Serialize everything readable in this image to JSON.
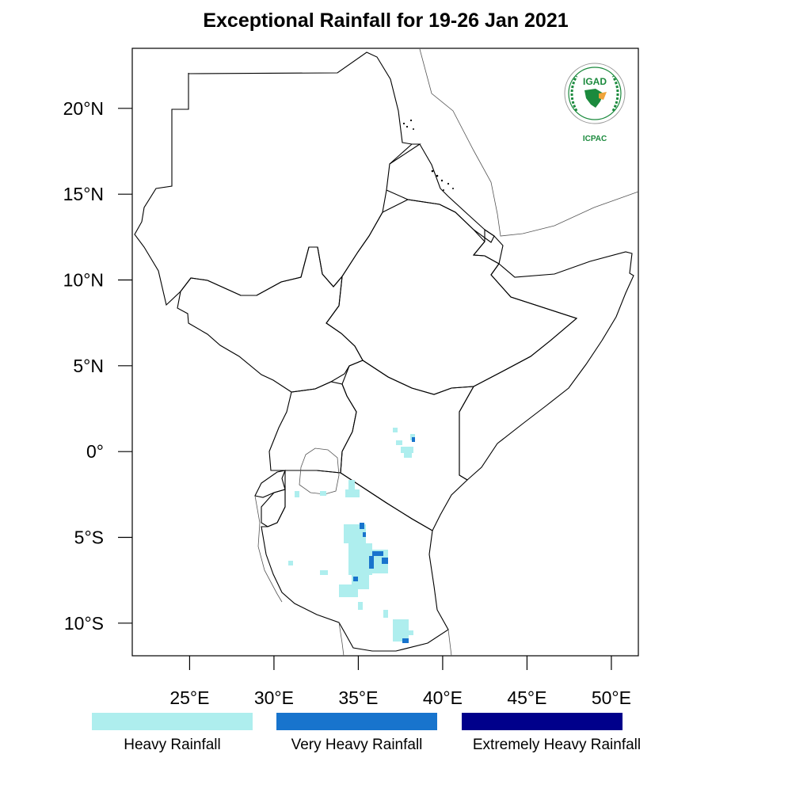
{
  "title": "Exceptional Rainfall for 19-26 Jan 2021",
  "map": {
    "lon_range": [
      21.6,
      51.6
    ],
    "lat_range": [
      -11.9,
      23.5
    ],
    "y_ticks": [
      {
        "value": 20,
        "label": "20°N"
      },
      {
        "value": 15,
        "label": "15°N"
      },
      {
        "value": 10,
        "label": "10°N"
      },
      {
        "value": 5,
        "label": "5°N"
      },
      {
        "value": 0,
        "label": "0°"
      },
      {
        "value": -5,
        "label": "5°S"
      },
      {
        "value": -10,
        "label": "10°S"
      }
    ],
    "x_ticks": [
      {
        "value": 25,
        "label": "25°E"
      },
      {
        "value": 30,
        "label": "30°E"
      },
      {
        "value": 35,
        "label": "35°E"
      },
      {
        "value": 40,
        "label": "40°E"
      },
      {
        "value": 45,
        "label": "45°E"
      },
      {
        "value": 50,
        "label": "50°E"
      }
    ]
  },
  "legend": [
    {
      "label": "Heavy Rainfall",
      "color": "#aeeeee"
    },
    {
      "label": "Very Heavy Rainfall",
      "color": "#1874cd"
    },
    {
      "label": "Extremely Heavy Rainfall",
      "color": "#00008b"
    }
  ],
  "logo": {
    "top_text": "IGAD",
    "bottom_text": "ICPAC",
    "color": "#1b8a3d"
  }
}
